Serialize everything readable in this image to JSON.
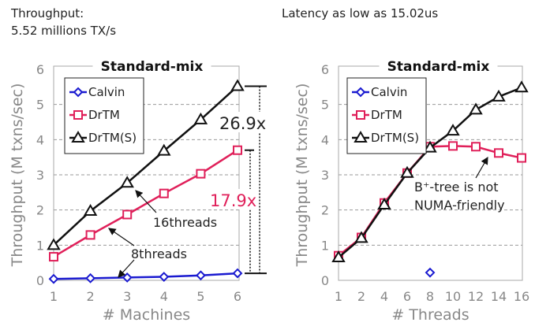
{
  "header": {
    "left_line1": "Throughput:",
    "left_line2": "5.52 millions TX/s",
    "right": "Latency as low as 15.02us"
  },
  "colors": {
    "Calvin": "#1a1ad0",
    "DrTM": "#e0205a",
    "DrTM(S)": "#111111"
  },
  "chart_data": [
    {
      "type": "line",
      "title": "Standard-mix",
      "xlabel": "# Machines",
      "ylabel": "Throughput (M txns/sec)",
      "x": [
        "1",
        "2",
        "3",
        "4",
        "5",
        "6"
      ],
      "ylim": [
        0,
        6
      ],
      "yticks": [
        "0",
        "1",
        "2",
        "3",
        "4",
        "5",
        "6"
      ],
      "grid": true,
      "legend": "top-left",
      "series": [
        {
          "name": "Calvin",
          "values": [
            0.04,
            0.06,
            0.08,
            0.1,
            0.14,
            0.2
          ]
        },
        {
          "name": "DrTM",
          "values": [
            0.67,
            1.29,
            1.87,
            2.47,
            3.03,
            3.7
          ]
        },
        {
          "name": "DrTM(S)",
          "values": [
            1.0,
            1.97,
            2.77,
            3.68,
            4.57,
            5.52
          ]
        }
      ],
      "annotations": {
        "ratio_s": "26.9x",
        "ratio_d": "17.9x",
        "t16": "16threads",
        "t8": "8threads"
      }
    },
    {
      "type": "line",
      "title": "Standard-mix",
      "xlabel": "# Threads",
      "ylabel": "Throughput (M txns/sec)",
      "x": [
        "1",
        "2",
        "4",
        "6",
        "8",
        "10",
        "12",
        "14",
        "16"
      ],
      "ylim": [
        0,
        6
      ],
      "yticks": [
        "0",
        "1",
        "2",
        "3",
        "4",
        "5",
        "6"
      ],
      "grid": true,
      "legend": "top-left",
      "series": [
        {
          "name": "Calvin",
          "values": [
            null,
            null,
            null,
            null,
            0.22,
            null,
            null,
            null,
            null
          ]
        },
        {
          "name": "DrTM",
          "values": [
            0.7,
            1.22,
            2.2,
            3.05,
            3.8,
            3.82,
            3.8,
            3.62,
            3.48
          ]
        },
        {
          "name": "DrTM(S)",
          "values": [
            0.65,
            1.2,
            2.15,
            3.05,
            3.77,
            4.25,
            4.85,
            5.22,
            5.48
          ]
        }
      ],
      "annotations": {
        "note1": "B⁺-tree is not",
        "note2": "NUMA-friendly"
      }
    }
  ]
}
